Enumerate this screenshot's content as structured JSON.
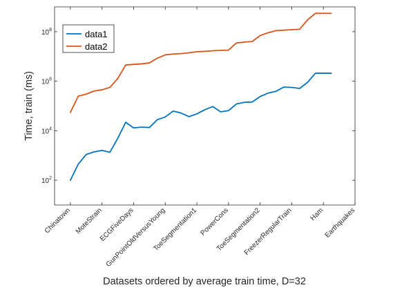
{
  "chart_data": {
    "type": "line",
    "title": "",
    "xlabel": "Datasets ordered by average train time, D=32",
    "ylabel": "Time, train (ms)",
    "yscale": "log",
    "ylim": [
      10,
      1000000000
    ],
    "yticks": [
      {
        "value": 100,
        "base": "10",
        "exp": "2"
      },
      {
        "value": 10000,
        "base": "10",
        "exp": "4"
      },
      {
        "value": 1000000,
        "base": "10",
        "exp": "6"
      },
      {
        "value": 100000000,
        "base": "10",
        "exp": "8"
      }
    ],
    "x": [
      1,
      2,
      3,
      4,
      5,
      6,
      7,
      8,
      9,
      10,
      11,
      12,
      13,
      14,
      15,
      16,
      17,
      18,
      19,
      20,
      21,
      22,
      23,
      24,
      25,
      26,
      27,
      28,
      29,
      30,
      31,
      32,
      33,
      34
    ],
    "xlim": [
      -1,
      37
    ],
    "xtick_labels": [
      {
        "x": 1,
        "label": "Chinatown"
      },
      {
        "x": 5,
        "label": "MoteStrain"
      },
      {
        "x": 9,
        "label": "ECGFiveDays"
      },
      {
        "x": 13,
        "label": "GunPointOldVersusYoung"
      },
      {
        "x": 17,
        "label": "ToeSegmentation1"
      },
      {
        "x": 21,
        "label": "PowerCons"
      },
      {
        "x": 25,
        "label": "ToeSegmentation2"
      },
      {
        "x": 29,
        "label": "FreezerRegularTrain"
      },
      {
        "x": 33,
        "label": "Ham"
      },
      {
        "x": 37,
        "label": "Earthquakes"
      }
    ],
    "legend_position": "top-left",
    "grid": false,
    "series": [
      {
        "name": "data1",
        "color": "#0072BD",
        "values": [
          100,
          450,
          1100,
          1400,
          1600,
          1350,
          5000,
          22000,
          13000,
          14000,
          13500,
          28000,
          36000,
          62000,
          52000,
          37000,
          48000,
          70000,
          95000,
          58000,
          65000,
          120000,
          140000,
          145000,
          240000,
          330000,
          390000,
          580000,
          560000,
          510000,
          900000,
          2100000,
          2100000,
          2100000
        ]
      },
      {
        "name": "data2",
        "color": "#D95319",
        "values": [
          55000,
          250000,
          300000,
          400000,
          450000,
          560000,
          1300000,
          4500000,
          4800000,
          5000000,
          5500000,
          8500000,
          11500000,
          12500000,
          13000000,
          14000000,
          15500000,
          16000000,
          17000000,
          17500000,
          18000000,
          35000000,
          38000000,
          40000000,
          70000000,
          90000000,
          110000000,
          115000000,
          120000000,
          125000000,
          300000000,
          550000000,
          550000000,
          550000000
        ]
      }
    ]
  }
}
